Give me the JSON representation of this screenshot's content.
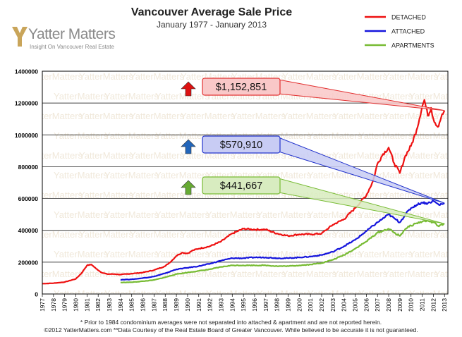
{
  "branding": {
    "logo_name": "Yatter Matters",
    "logo_tagline": "Insight On Vancouver Real Estate",
    "watermark_text": "YatterMatters"
  },
  "footnotes": [
    "* Prior to 1984 condominium averages were not separated into attached & apartment and are not reported herein.",
    "©2012 YatterMatters.com **Data Courtesy of the Real Estate Board of Greater Vancouver.  While believed to be accurate it is not guaranteed."
  ],
  "chart_data": {
    "type": "line",
    "title": "Vancouver Average Sale Price",
    "subtitle": "January 1977 - January 2013",
    "xlabel": "",
    "ylabel": "",
    "xlim": [
      1977,
      2013.3
    ],
    "ylim": [
      0,
      1400000
    ],
    "grid": true,
    "legend_position": "top-right",
    "y_ticks": [
      0,
      200000,
      400000,
      600000,
      800000,
      1000000,
      1200000,
      1400000
    ],
    "x_tick_labels": [
      "1977",
      "1978",
      "1979",
      "1980",
      "1981",
      "1982",
      "1983",
      "1984",
      "1985",
      "1986",
      "1987",
      "1988",
      "1989",
      "1990",
      "1991",
      "1992",
      "1993",
      "1994",
      "1995",
      "1996",
      "1997",
      "1998",
      "1999",
      "2000",
      "2001",
      "2002",
      "2003",
      "2004",
      "2005",
      "2006",
      "2007",
      "2008",
      "2009",
      "2010",
      "2011",
      "2012",
      "2013"
    ],
    "series": [
      {
        "name": "DETACHED",
        "color": "#ee1111",
        "points": [
          [
            1977,
            65000
          ],
          [
            1978,
            68000
          ],
          [
            1979,
            75000
          ],
          [
            1980,
            95000
          ],
          [
            1980.5,
            130000
          ],
          [
            1981,
            180000
          ],
          [
            1981.4,
            185000
          ],
          [
            1981.8,
            160000
          ],
          [
            1982.3,
            135000
          ],
          [
            1982.8,
            125000
          ],
          [
            1983.5,
            125000
          ],
          [
            1984,
            122000
          ],
          [
            1985,
            128000
          ],
          [
            1986,
            135000
          ],
          [
            1987,
            150000
          ],
          [
            1988,
            175000
          ],
          [
            1988.6,
            210000
          ],
          [
            1989,
            240000
          ],
          [
            1989.5,
            260000
          ],
          [
            1990,
            255000
          ],
          [
            1990.5,
            275000
          ],
          [
            1991,
            285000
          ],
          [
            1992,
            300000
          ],
          [
            1993,
            330000
          ],
          [
            1994,
            380000
          ],
          [
            1995,
            410000
          ],
          [
            1996,
            405000
          ],
          [
            1997,
            405000
          ],
          [
            1998,
            380000
          ],
          [
            1999,
            365000
          ],
          [
            2000,
            375000
          ],
          [
            2001,
            375000
          ],
          [
            2002,
            380000
          ],
          [
            2003,
            435000
          ],
          [
            2004,
            470000
          ],
          [
            2005,
            540000
          ],
          [
            2006,
            620000
          ],
          [
            2006.6,
            710000
          ],
          [
            2007,
            820000
          ],
          [
            2007.5,
            880000
          ],
          [
            2008,
            920000
          ],
          [
            2008.5,
            820000
          ],
          [
            2009,
            760000
          ],
          [
            2009.5,
            870000
          ],
          [
            2010,
            930000
          ],
          [
            2010.5,
            1030000
          ],
          [
            2011,
            1180000
          ],
          [
            2011.2,
            1220000
          ],
          [
            2011.5,
            1120000
          ],
          [
            2011.8,
            1170000
          ],
          [
            2012,
            1100000
          ],
          [
            2012.4,
            1050000
          ],
          [
            2012.7,
            1110000
          ],
          [
            2013,
            1152851
          ]
        ]
      },
      {
        "name": "ATTACHED",
        "color": "#1515dd",
        "points": [
          [
            1984,
            90000
          ],
          [
            1985,
            92000
          ],
          [
            1986,
            100000
          ],
          [
            1987,
            110000
          ],
          [
            1988,
            130000
          ],
          [
            1989,
            155000
          ],
          [
            1990,
            165000
          ],
          [
            1991,
            175000
          ],
          [
            1992,
            190000
          ],
          [
            1993,
            210000
          ],
          [
            1994,
            225000
          ],
          [
            1995,
            225000
          ],
          [
            1996,
            230000
          ],
          [
            1997,
            230000
          ],
          [
            1998,
            225000
          ],
          [
            1999,
            225000
          ],
          [
            2000,
            230000
          ],
          [
            2001,
            235000
          ],
          [
            2002,
            245000
          ],
          [
            2003,
            265000
          ],
          [
            2004,
            300000
          ],
          [
            2005,
            340000
          ],
          [
            2006,
            395000
          ],
          [
            2007,
            450000
          ],
          [
            2008,
            500000
          ],
          [
            2008.6,
            470000
          ],
          [
            2009,
            450000
          ],
          [
            2009.5,
            500000
          ],
          [
            2010,
            540000
          ],
          [
            2010.5,
            560000
          ],
          [
            2011,
            575000
          ],
          [
            2011.5,
            570000
          ],
          [
            2012,
            585000
          ],
          [
            2012.5,
            560000
          ],
          [
            2013,
            570910
          ]
        ]
      },
      {
        "name": "APARTMENTS",
        "color": "#77bb33",
        "points": [
          [
            1984,
            72000
          ],
          [
            1985,
            74000
          ],
          [
            1986,
            80000
          ],
          [
            1987,
            88000
          ],
          [
            1988,
            105000
          ],
          [
            1989,
            125000
          ],
          [
            1990,
            135000
          ],
          [
            1991,
            145000
          ],
          [
            1992,
            155000
          ],
          [
            1993,
            170000
          ],
          [
            1994,
            180000
          ],
          [
            1995,
            180000
          ],
          [
            1996,
            180000
          ],
          [
            1997,
            180000
          ],
          [
            1998,
            175000
          ],
          [
            1999,
            175000
          ],
          [
            2000,
            180000
          ],
          [
            2001,
            185000
          ],
          [
            2002,
            195000
          ],
          [
            2003,
            215000
          ],
          [
            2004,
            245000
          ],
          [
            2005,
            285000
          ],
          [
            2006,
            330000
          ],
          [
            2007,
            385000
          ],
          [
            2008,
            410000
          ],
          [
            2008.6,
            380000
          ],
          [
            2009,
            365000
          ],
          [
            2009.5,
            410000
          ],
          [
            2010,
            430000
          ],
          [
            2010.5,
            445000
          ],
          [
            2011,
            455000
          ],
          [
            2011.5,
            460000
          ],
          [
            2012,
            450000
          ],
          [
            2012.5,
            425000
          ],
          [
            2013,
            441667
          ]
        ]
      }
    ],
    "annotations": [
      {
        "label": "$1,152,851",
        "series": "DETACHED",
        "fill": "#f9c8c8",
        "stroke": "#e23030",
        "arrow_color": "#dd1111"
      },
      {
        "label": "$570,910",
        "series": "ATTACHED",
        "fill": "#c8ccf4",
        "stroke": "#2233cc",
        "arrow_color": "#2266bb"
      },
      {
        "label": "$441,667",
        "series": "APARTMENTS",
        "fill": "#d8ecc0",
        "stroke": "#77bb33",
        "arrow_color": "#66aa33"
      }
    ]
  }
}
